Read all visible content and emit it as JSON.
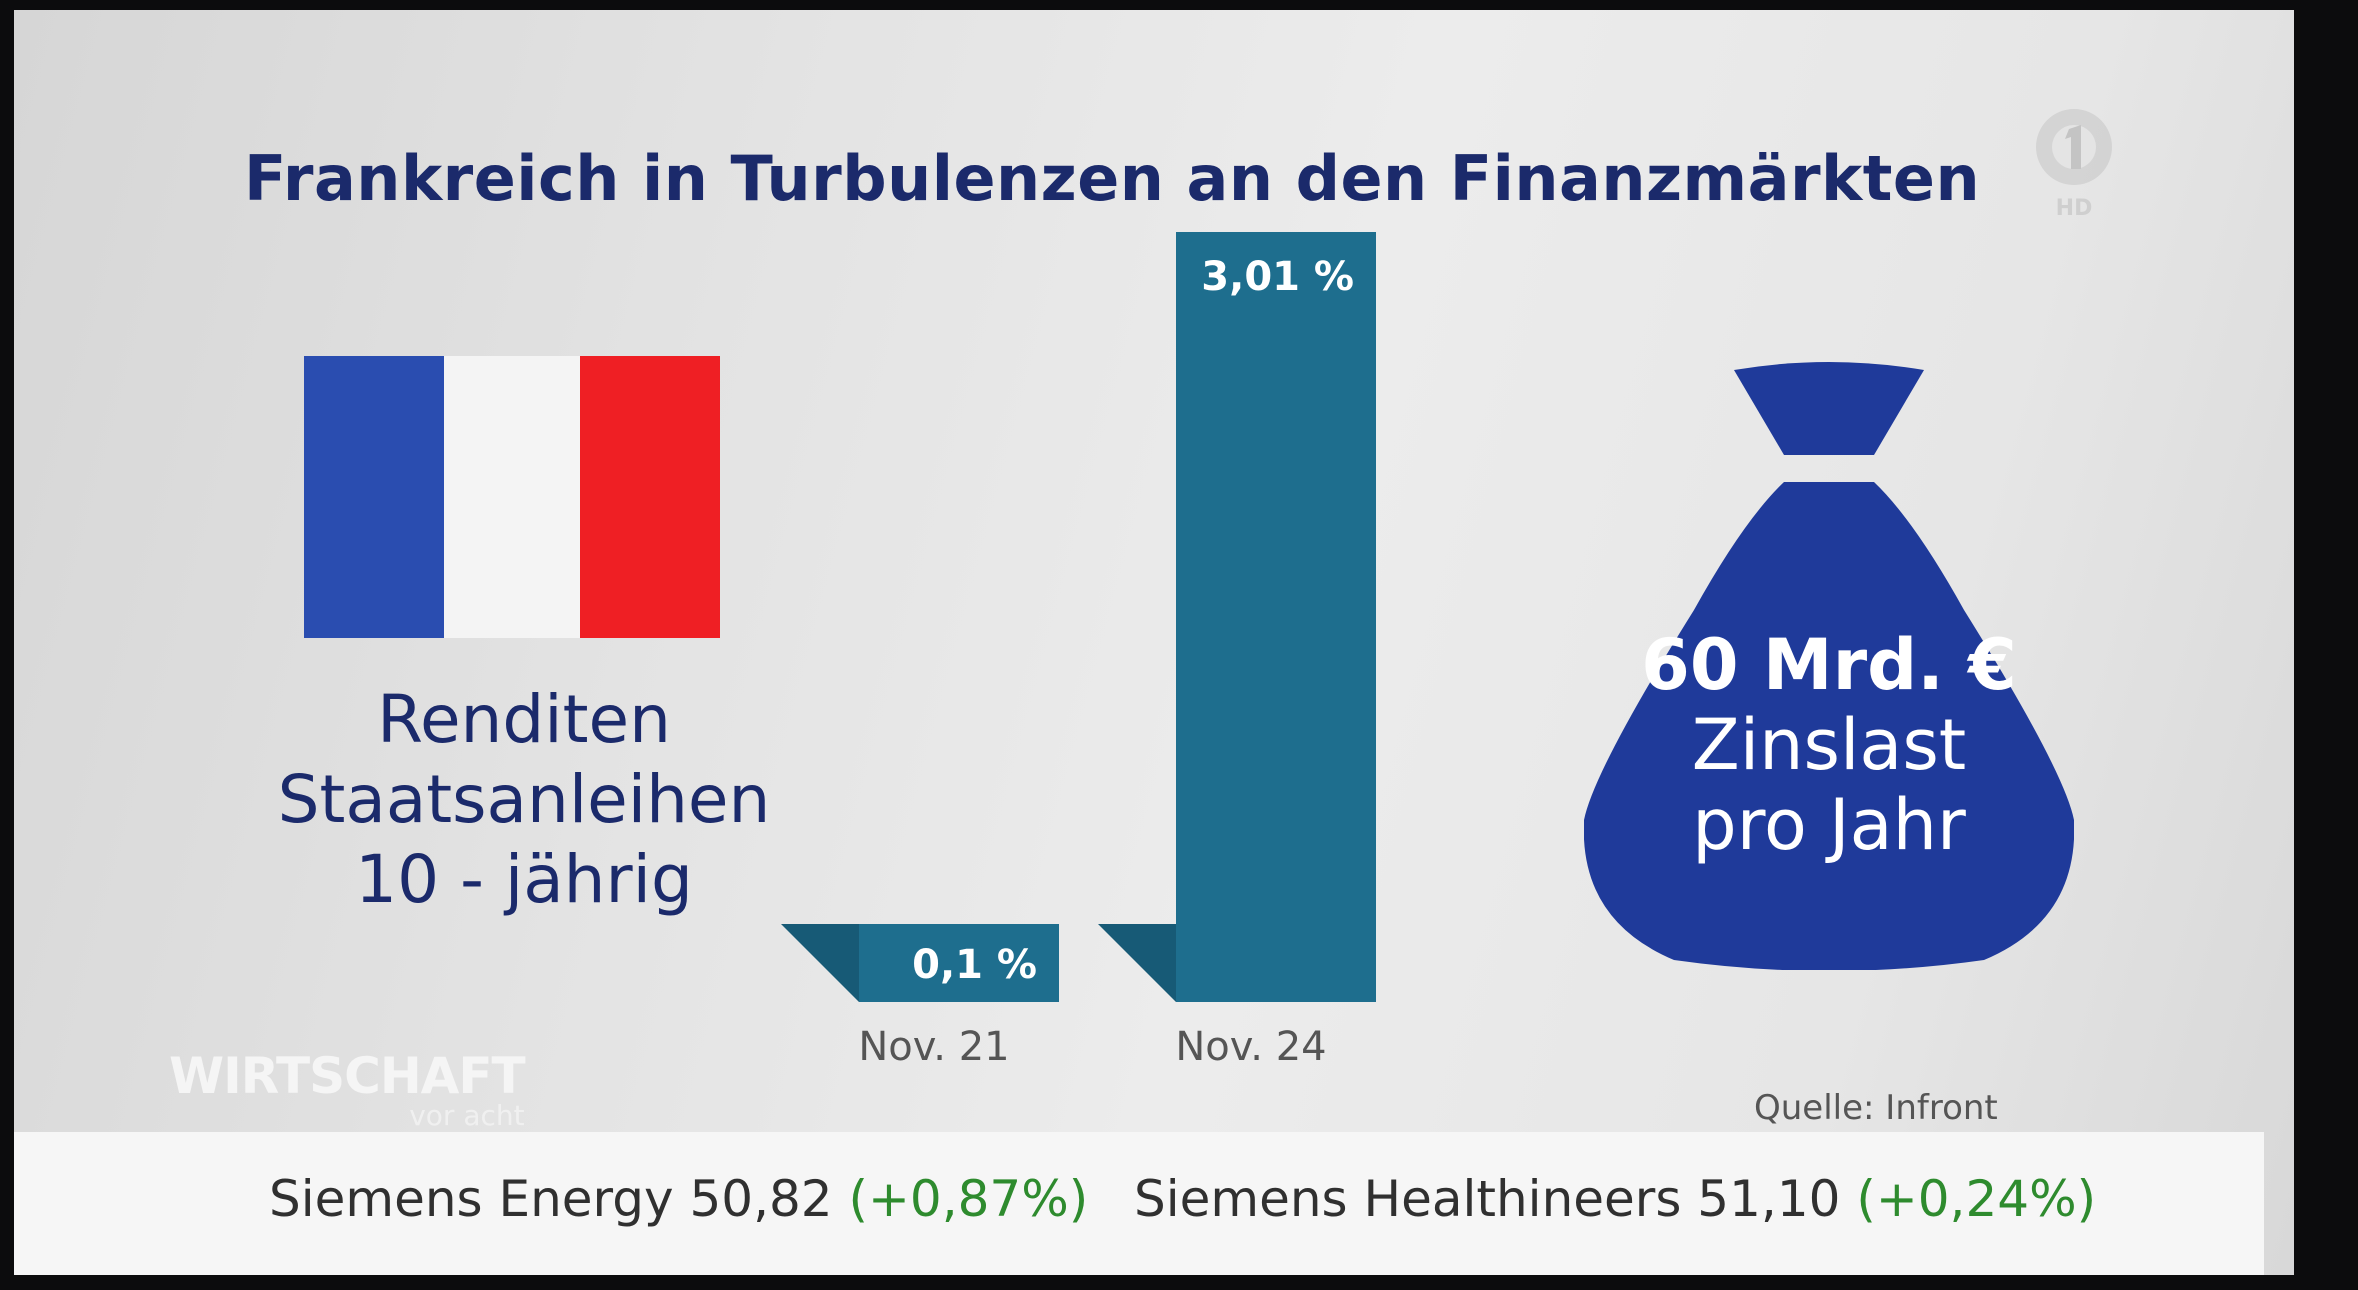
{
  "title": "Frankreich in Turbulenzen an den Finanzmärkten",
  "logo": {
    "icon": "ard-one-icon",
    "label": "HD"
  },
  "flag": {
    "icon": "france-flag-icon",
    "colors": [
      "#2a4db0",
      "#f4f4f4",
      "#ef1f24"
    ]
  },
  "flag_caption": [
    "Renditen",
    "Staatsanleihen",
    "10 - jährig"
  ],
  "money_bag": {
    "icon": "money-bag-icon",
    "lines": [
      "60 Mrd. €",
      "Zinslast",
      "pro Jahr"
    ],
    "color": "#1f3a9a"
  },
  "chart_data": {
    "type": "bar",
    "categories": [
      "Nov. 21",
      "Nov. 24"
    ],
    "values": [
      0.1,
      3.01
    ],
    "data_labels": [
      "0,1 %",
      "3,01 %"
    ],
    "title": "",
    "xlabel": "",
    "ylabel": "",
    "bar_color": "#1e6e8e",
    "grid": false
  },
  "brand": {
    "line1": "WIRTSCHAFT",
    "line2": "vor acht"
  },
  "source": "Quelle: Infront",
  "ticker": [
    {
      "name": "Siemens Energy",
      "value": "50,82",
      "change": "(+0,87%)"
    },
    {
      "name": "Siemens Healthineers",
      "value": "51,10",
      "change": "(+0,24%)"
    }
  ]
}
